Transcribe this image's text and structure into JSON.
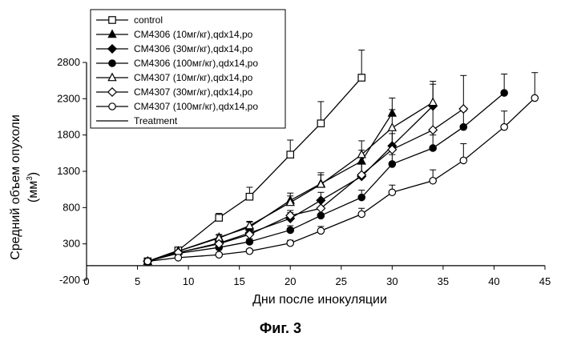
{
  "figure_caption": "Фиг. 3",
  "chart_data": {
    "type": "line",
    "title": "",
    "xlabel": "Дни после инокуляции",
    "ylabel_line1": "Средний объем опухоли",
    "ylabel_line2": "(мм",
    "ylabel_sup": "3",
    "ylabel_close": ")",
    "xlim": [
      0,
      45
    ],
    "ylim": [
      -200,
      2800
    ],
    "xticks": [
      0,
      5,
      10,
      15,
      20,
      25,
      30,
      35,
      40,
      45
    ],
    "xtick_labels": [
      "0",
      "5",
      "10",
      "15",
      "20",
      "25",
      "30",
      "35",
      "40",
      "45"
    ],
    "yticks": [
      -200,
      300,
      800,
      1300,
      1800,
      2300,
      2800
    ],
    "ytick_labels": [
      "-200",
      "300",
      "800",
      "1300",
      "1800",
      "2300",
      "2800"
    ],
    "grid": false,
    "legend_position": "top-left",
    "series": [
      {
        "name": "control",
        "marker": "square-open",
        "style": "solid",
        "x": [
          6,
          9,
          13,
          16,
          20,
          23,
          27
        ],
        "y": [
          60,
          210,
          660,
          950,
          1530,
          1960,
          2590
        ],
        "err": [
          0,
          0,
          60,
          130,
          200,
          300,
          380
        ]
      },
      {
        "name": "CM4306 (10мг/кг),qdx14,po",
        "marker": "triangle-filled",
        "style": "solid",
        "x": [
          6,
          9,
          13,
          16,
          20,
          23,
          27,
          30
        ],
        "y": [
          60,
          200,
          390,
          530,
          900,
          1130,
          1440,
          2100
        ],
        "err": [
          0,
          0,
          40,
          70,
          100,
          150,
          150,
          210
        ]
      },
      {
        "name": "CM4306 (30мг/кг),qdx14,po",
        "marker": "diamond-filled",
        "style": "solid",
        "x": [
          6,
          9,
          13,
          16,
          20,
          23,
          27,
          30,
          34
        ],
        "y": [
          60,
          180,
          310,
          450,
          650,
          900,
          1230,
          1650,
          2200
        ],
        "err": [
          0,
          0,
          30,
          50,
          80,
          110,
          170,
          220,
          300
        ]
      },
      {
        "name": "CM4306 (100мг/кг),qdx14,po",
        "marker": "circle-filled",
        "style": "solid",
        "x": [
          6,
          9,
          13,
          16,
          20,
          23,
          27,
          30,
          34,
          37,
          41
        ],
        "y": [
          60,
          170,
          250,
          330,
          490,
          690,
          940,
          1400,
          1620,
          1910,
          2380
        ],
        "err": [
          0,
          0,
          20,
          40,
          60,
          80,
          100,
          130,
          180,
          220,
          260
        ]
      },
      {
        "name": "CM4307 (10мг/кг),qdx14,po",
        "marker": "triangle-open",
        "style": "solid",
        "x": [
          6,
          9,
          13,
          16,
          20,
          23,
          27,
          30,
          34
        ],
        "y": [
          60,
          200,
          380,
          550,
          870,
          1120,
          1530,
          1900,
          2250
        ],
        "err": [
          0,
          0,
          40,
          60,
          90,
          130,
          190,
          250,
          290
        ]
      },
      {
        "name": "CM4307 (30мг/кг),qdx14,po",
        "marker": "diamond-open",
        "style": "solid",
        "x": [
          6,
          9,
          13,
          16,
          20,
          23,
          27,
          30,
          34,
          37
        ],
        "y": [
          60,
          180,
          300,
          430,
          690,
          790,
          1250,
          1600,
          1870,
          2160
        ],
        "err": [
          0,
          0,
          30,
          50,
          70,
          110,
          170,
          220,
          330,
          460
        ]
      },
      {
        "name": "CM4307 (100мг/кг),qdx14,po",
        "marker": "circle-open",
        "style": "solid",
        "x": [
          6,
          9,
          13,
          16,
          20,
          23,
          27,
          30,
          34,
          37,
          41,
          44
        ],
        "y": [
          60,
          110,
          150,
          200,
          310,
          480,
          710,
          1010,
          1170,
          1450,
          1910,
          2310
        ],
        "err": [
          0,
          0,
          20,
          30,
          40,
          60,
          80,
          100,
          150,
          230,
          220,
          350
        ]
      },
      {
        "name": "Treatment",
        "marker": "none",
        "style": "solid",
        "x": [],
        "y": [],
        "err": []
      }
    ]
  }
}
